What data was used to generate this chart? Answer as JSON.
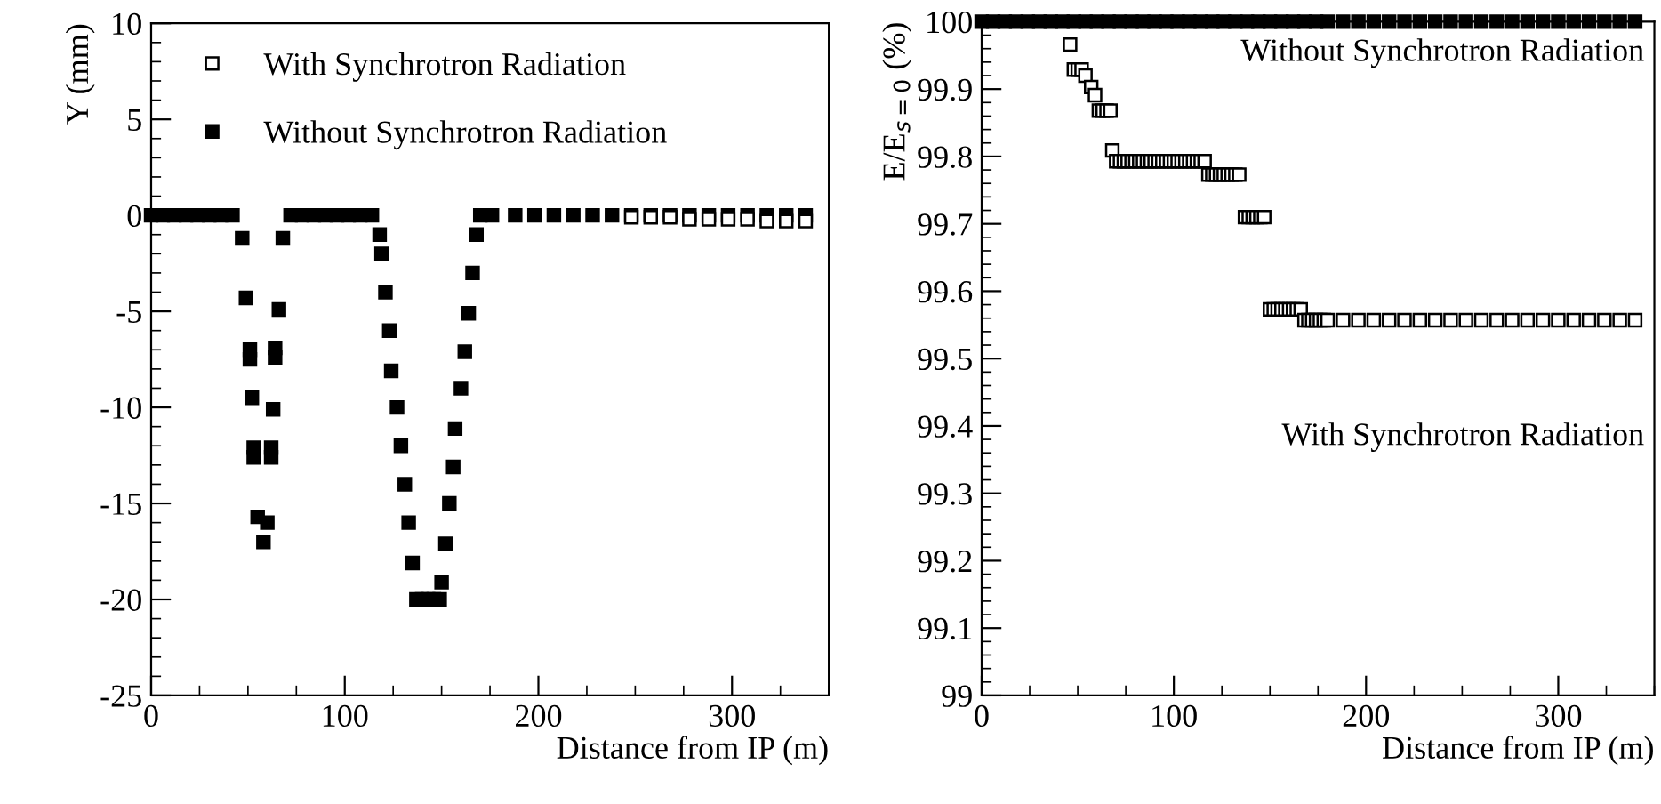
{
  "chart_data": [
    {
      "type": "scatter",
      "xlabel": "Distance from IP (m)",
      "ylabel": "Y (mm)",
      "xlim": [
        0,
        350
      ],
      "ylim": [
        -25,
        10
      ],
      "xticks": [
        0,
        100,
        200,
        300
      ],
      "yticks": [
        {
          "value": -25,
          "label": "-25"
        },
        {
          "value": -20,
          "label": "-20"
        },
        {
          "value": -15,
          "label": "-15"
        },
        {
          "value": -10,
          "label": "-10"
        },
        {
          "value": -5,
          "label": "-5"
        },
        0,
        5,
        10
      ],
      "marker": "square",
      "grid": false,
      "legend": "top left",
      "series": [
        {
          "name": "With Synchrotron Radiation",
          "color": "#ffffff",
          "x": [
            248,
            258,
            268,
            278,
            288,
            298,
            308,
            318,
            328,
            338
          ],
          "values": [
            -0.1,
            -0.1,
            -0.1,
            -0.2,
            -0.2,
            -0.2,
            -0.2,
            -0.3,
            -0.3,
            -0.3
          ]
        },
        {
          "name": "Without Synchrotron Radiation",
          "color": "#000000",
          "x": [
            0,
            6,
            12,
            18,
            24,
            30,
            36,
            42,
            47,
            49,
            51,
            51,
            52,
            53,
            53,
            55,
            58,
            60,
            62,
            62,
            63,
            64,
            64,
            66,
            68,
            72,
            78,
            84,
            90,
            96,
            102,
            108,
            114,
            118,
            119,
            121,
            123,
            124,
            127,
            129,
            131,
            133,
            135,
            137,
            140,
            143,
            146,
            149,
            150,
            152,
            154,
            156,
            157,
            160,
            162,
            164,
            166,
            168,
            170,
            176,
            188,
            198,
            208,
            218,
            228,
            238,
            248,
            258,
            268,
            278,
            288,
            298,
            308,
            318,
            328,
            338
          ],
          "values": [
            0,
            0,
            0,
            0,
            0,
            0,
            0,
            0,
            -1.2,
            -4.3,
            -7.0,
            -7.5,
            -9.5,
            -12.1,
            -12.6,
            -15.7,
            -17.0,
            -16.0,
            -12.1,
            -12.6,
            -10.1,
            -7.4,
            -6.9,
            -4.9,
            -1.2,
            0,
            0,
            0,
            0,
            0,
            0,
            0,
            0,
            -1.0,
            -2.0,
            -4.0,
            -6.0,
            -8.1,
            -10.0,
            -12.0,
            -14.0,
            -16.0,
            -18.1,
            -20,
            -20,
            -20,
            -20,
            -20,
            -19.1,
            -17.1,
            -15.0,
            -13.1,
            -11.1,
            -9.0,
            -7.1,
            -5.1,
            -3.0,
            -1.0,
            0,
            0,
            0,
            0,
            0,
            0,
            0,
            0,
            0,
            0,
            0,
            0,
            0,
            0,
            0,
            0,
            0,
            0
          ]
        }
      ]
    },
    {
      "type": "scatter",
      "xlabel": "Distance from IP (m)",
      "ylabel": "E/E$_{s=0}$ (%)",
      "xlim": [
        0,
        350
      ],
      "ylim": [
        99,
        100
      ],
      "xticks": [
        0,
        100,
        200,
        300
      ],
      "yticks": [
        99,
        99.1,
        99.2,
        99.3,
        99.4,
        99.5,
        99.6,
        99.7,
        99.8,
        99.9,
        100
      ],
      "marker": "square",
      "grid": false,
      "legend": false,
      "series": [
        {
          "name": "With Synchrotron Radiation",
          "color": "#ffffff",
          "x": [
            46,
            48,
            50,
            52,
            54,
            57,
            59,
            61,
            63,
            65,
            67,
            68,
            70,
            72,
            74,
            76,
            78,
            80,
            82,
            84,
            86,
            88,
            90,
            92,
            94,
            96,
            98,
            100,
            102,
            104,
            106,
            108,
            110,
            112,
            114,
            116,
            118,
            120,
            122,
            124,
            126,
            128,
            130,
            132,
            134,
            137,
            139,
            141,
            143,
            145,
            147,
            150,
            152,
            154,
            156,
            158,
            160,
            162,
            164,
            166,
            168,
            170,
            172,
            174,
            176,
            178,
            180,
            188,
            196,
            204,
            212,
            220,
            228,
            236,
            244,
            252,
            260,
            268,
            276,
            284,
            292,
            300,
            308,
            316,
            324,
            332,
            340
          ],
          "values": [
            99.966,
            99.929,
            99.929,
            99.929,
            99.92,
            99.903,
            99.891,
            99.868,
            99.868,
            99.868,
            99.868,
            99.809,
            99.793,
            99.793,
            99.793,
            99.793,
            99.793,
            99.793,
            99.793,
            99.793,
            99.793,
            99.793,
            99.793,
            99.793,
            99.793,
            99.793,
            99.793,
            99.793,
            99.793,
            99.793,
            99.793,
            99.793,
            99.793,
            99.793,
            99.793,
            99.793,
            99.773,
            99.773,
            99.773,
            99.773,
            99.773,
            99.773,
            99.773,
            99.773,
            99.773,
            99.71,
            99.71,
            99.71,
            99.71,
            99.71,
            99.71,
            99.573,
            99.573,
            99.573,
            99.573,
            99.573,
            99.573,
            99.573,
            99.573,
            99.573,
            99.557,
            99.557,
            99.557,
            99.557,
            99.557,
            99.557,
            99.557,
            99.557,
            99.557,
            99.557,
            99.557,
            99.557,
            99.557,
            99.557,
            99.557,
            99.557,
            99.557,
            99.557,
            99.557,
            99.557,
            99.557,
            99.557,
            99.557,
            99.557,
            99.557,
            99.557,
            99.557
          ]
        },
        {
          "name": "Without Synchrotron Radiation",
          "color": "#000000",
          "x": [
            0,
            6,
            12,
            18,
            24,
            30,
            36,
            42,
            48,
            54,
            60,
            66,
            72,
            78,
            84,
            90,
            96,
            102,
            108,
            114,
            120,
            126,
            132,
            138,
            144,
            150,
            156,
            162,
            168,
            174,
            180,
            188,
            196,
            204,
            212,
            220,
            228,
            236,
            244,
            252,
            260,
            268,
            276,
            284,
            292,
            300,
            308,
            316,
            324,
            332,
            340
          ],
          "values": [
            100,
            100,
            100,
            100,
            100,
            100,
            100,
            100,
            100,
            100,
            100,
            100,
            100,
            100,
            100,
            100,
            100,
            100,
            100,
            100,
            100,
            100,
            100,
            100,
            100,
            100,
            100,
            100,
            100,
            100,
            100,
            100,
            100,
            100,
            100,
            100,
            100,
            100,
            100,
            100,
            100,
            100,
            100,
            100,
            100,
            100,
            100,
            100,
            100,
            100,
            100
          ]
        }
      ]
    }
  ]
}
